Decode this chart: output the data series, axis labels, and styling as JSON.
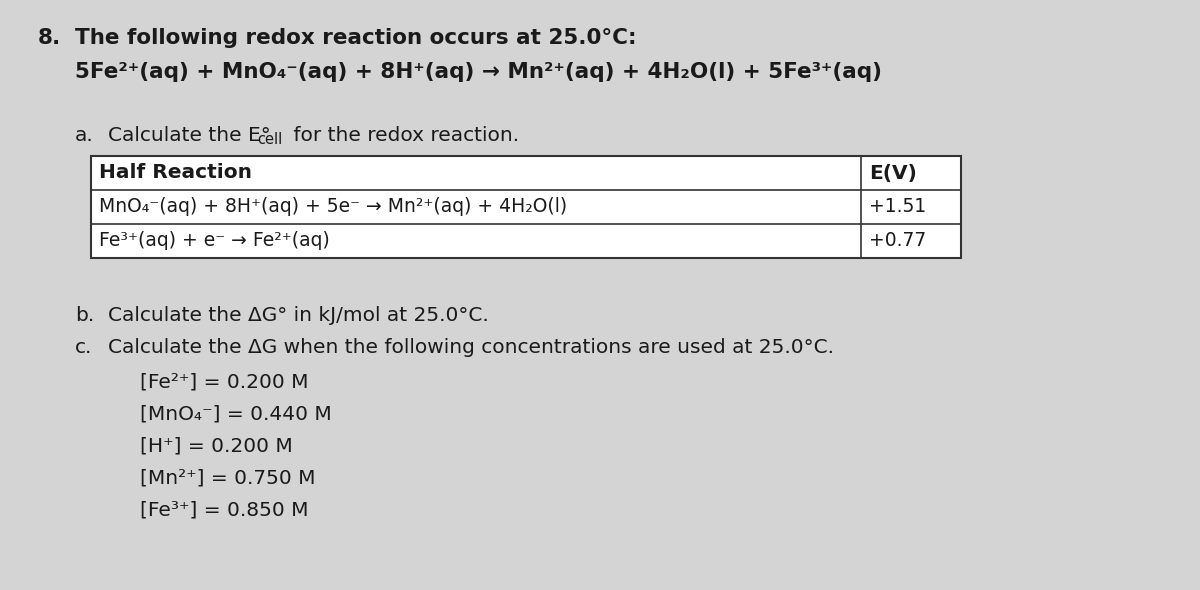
{
  "background_color": "#d4d4d4",
  "fig_width": 12.0,
  "fig_height": 5.9,
  "question_number": "8.",
  "title_line1": "The following redox reaction occurs at 25.0°C:",
  "title_line2": "5Fe²⁺(aq) + MnO₄⁻(aq) + 8H⁺(aq) → Mn²⁺(aq) + 4H₂O(l) + 5Fe³⁺(aq)",
  "part_a_label": "a.",
  "part_a_text1": "Calculate the E°",
  "part_a_sub": "cell",
  "part_a_text2": " for the redox reaction.",
  "table_header_col1": "Half Reaction",
  "table_header_col2": "E(V)",
  "table_row1_col1": "MnO₄⁻(aq) + 8H⁺(aq) + 5e⁻ → Mn²⁺(aq) + 4H₂O(l)",
  "table_row1_col2": "+1.51",
  "table_row2_col1": "Fe³⁺(aq) + e⁻ → Fe²⁺(aq)",
  "table_row2_col2": "+0.77",
  "part_b_label": "b.",
  "part_b_text": "Calculate the ΔG° in kJ/mol at 25.0°C.",
  "part_c_label": "c.",
  "part_c_text": "Calculate the ΔG when the following concentrations are used at 25.0°C.",
  "conc_lines": [
    "[Fe²⁺] = 0.200 M",
    "[MnO₄⁻] = 0.440 M",
    "[H⁺] = 0.200 M",
    "[Mn²⁺] = 0.750 M",
    "[Fe³⁺] = 0.850 M"
  ],
  "font_color": "#1a1a1a",
  "table_border_color": "#333333",
  "fs_heading": 15.5,
  "fs_body": 14.5,
  "fs_table_header": 14.5,
  "fs_table_body": 13.5,
  "fs_sub": 10.5
}
